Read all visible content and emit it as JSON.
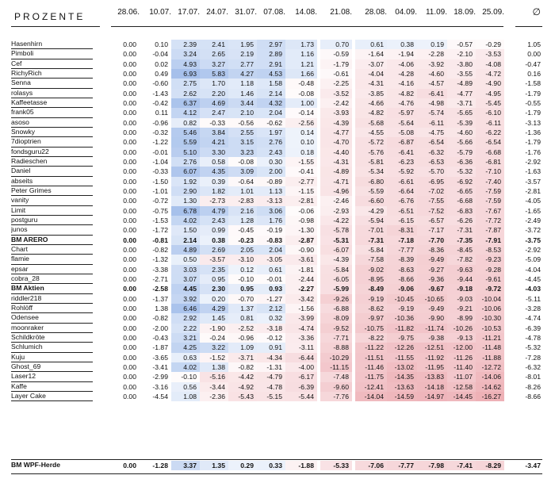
{
  "title": "PROZENTE",
  "avg_header": "∅",
  "dates": [
    "28.06.",
    "10.07.",
    "17.07.",
    "24.07.",
    "31.07.",
    "07.08.",
    "14.08.",
    "21.08.",
    "28.08.",
    "04.09.",
    "11.09.",
    "18.09.",
    "25.09."
  ],
  "rows": [
    {
      "name": "Hasenhirn",
      "values": [
        "0.00",
        "0.10",
        "2.39",
        "2.41",
        "1.95",
        "2.97",
        "1.73",
        "0.70",
        "0.61",
        "0.38",
        "0.19",
        "-0.57",
        "-0.29"
      ],
      "avg": "1.05",
      "bold": false
    },
    {
      "name": "Pimboli",
      "values": [
        "0.00",
        "-0.04",
        "3.24",
        "2.65",
        "2.19",
        "2.89",
        "1.16",
        "-0.59",
        "-1.64",
        "-1.94",
        "-2.28",
        "-2.10",
        "-3.53"
      ],
      "avg": "0.00",
      "bold": false
    },
    {
      "name": "Cef",
      "values": [
        "0.00",
        "0.02",
        "4.93",
        "3.27",
        "2.77",
        "2.91",
        "1.21",
        "-1.79",
        "-3.07",
        "-4.06",
        "-3.92",
        "-3.80",
        "-4.08"
      ],
      "avg": "-0.47",
      "bold": false
    },
    {
      "name": "RichyRich",
      "values": [
        "0.00",
        "0.49",
        "6.93",
        "5.83",
        "4.27",
        "4.53",
        "1.66",
        "-0.61",
        "-4.04",
        "-4.28",
        "-4.60",
        "-3.55",
        "-4.72"
      ],
      "avg": "0.16",
      "bold": false
    },
    {
      "name": "Senna",
      "values": [
        "0.00",
        "-0.60",
        "2.75",
        "1.70",
        "1.18",
        "1.58",
        "-0.48",
        "-2.25",
        "-4.31",
        "-4.16",
        "-4.57",
        "-4.89",
        "-4.90"
      ],
      "avg": "-1.58",
      "bold": false
    },
    {
      "name": "rolasys",
      "values": [
        "0.00",
        "-1.43",
        "2.62",
        "2.20",
        "1.46",
        "2.14",
        "-0.08",
        "-3.52",
        "-3.85",
        "-4.82",
        "-6.41",
        "-4.77",
        "-4.95"
      ],
      "avg": "-1.79",
      "bold": false
    },
    {
      "name": "Kaffeetasse",
      "values": [
        "0.00",
        "-0.42",
        "6.37",
        "4.69",
        "3.44",
        "4.32",
        "1.00",
        "-2.42",
        "-4.66",
        "-4.76",
        "-4.98",
        "-3.71",
        "-5.45"
      ],
      "avg": "-0.55",
      "bold": false
    },
    {
      "name": "frank05",
      "values": [
        "0.00",
        "0.11",
        "4.12",
        "2.47",
        "2.10",
        "2.04",
        "-0.14",
        "-3.93",
        "-4.82",
        "-5.97",
        "-5.74",
        "-5.65",
        "-6.10"
      ],
      "avg": "-1.79",
      "bold": false
    },
    {
      "name": "asoso",
      "values": [
        "0.00",
        "-0.96",
        "0.82",
        "-0.33",
        "-0.56",
        "-0.62",
        "-2.56",
        "-4.39",
        "-5.68",
        "-5.64",
        "-6.11",
        "-5.39",
        "-6.11"
      ],
      "avg": "-3.13",
      "bold": false
    },
    {
      "name": "Snowky",
      "values": [
        "0.00",
        "-0.32",
        "5.46",
        "3.84",
        "2.55",
        "1.97",
        "0.14",
        "-4.77",
        "-4.55",
        "-5.08",
        "-4.75",
        "-4.60",
        "-6.22"
      ],
      "avg": "-1.36",
      "bold": false
    },
    {
      "name": "7dioptrien",
      "values": [
        "0.00",
        "-1.22",
        "5.59",
        "4.21",
        "3.15",
        "2.76",
        "0.10",
        "-4.70",
        "-5.72",
        "-6.87",
        "-6.54",
        "-5.66",
        "-6.54"
      ],
      "avg": "-1.79",
      "bold": false
    },
    {
      "name": "fondsguru22",
      "values": [
        "0.00",
        "-0.01",
        "5.10",
        "3.30",
        "3.23",
        "2.43",
        "0.18",
        "-4.40",
        "-5.76",
        "-6.41",
        "-6.32",
        "-5.79",
        "-6.68"
      ],
      "avg": "-1.76",
      "bold": false
    },
    {
      "name": "Radieschen",
      "values": [
        "0.00",
        "-1.04",
        "2.76",
        "0.58",
        "-0.08",
        "0.30",
        "-1.55",
        "-4.31",
        "-5.81",
        "-6.23",
        "-6.53",
        "-6.36",
        "-6.81"
      ],
      "avg": "-2.92",
      "bold": false
    },
    {
      "name": "Daniel",
      "values": [
        "0.00",
        "-0.33",
        "6.07",
        "4.35",
        "3.09",
        "2.00",
        "-0.41",
        "-4.89",
        "-5.34",
        "-5.92",
        "-5.70",
        "-5.32",
        "-7.10"
      ],
      "avg": "-1.63",
      "bold": false
    },
    {
      "name": "abseits",
      "values": [
        "0.00",
        "-1.50",
        "1.92",
        "0.39",
        "-0.64",
        "-0.89",
        "-2.77",
        "-4.71",
        "-6.80",
        "-6.61",
        "-6.95",
        "-6.92",
        "-7.40"
      ],
      "avg": "-3.57",
      "bold": false
    },
    {
      "name": "Peter Grimes",
      "values": [
        "0.00",
        "-1.01",
        "2.90",
        "1.82",
        "1.01",
        "1.13",
        "-1.15",
        "-4.96",
        "-5.59",
        "-6.64",
        "-7.02",
        "-6.65",
        "-7.59"
      ],
      "avg": "-2.81",
      "bold": false
    },
    {
      "name": "vanity",
      "values": [
        "0.00",
        "-0.72",
        "1.30",
        "-2.73",
        "-2.83",
        "-3.13",
        "-2.81",
        "-2.46",
        "-6.60",
        "-6.76",
        "-7.55",
        "-6.68",
        "-7.59"
      ],
      "avg": "-4.05",
      "bold": false
    },
    {
      "name": "Limit",
      "values": [
        "0.00",
        "-0.75",
        "6.78",
        "4.79",
        "2.16",
        "3.06",
        "-0.06",
        "-2.93",
        "-4.29",
        "-6.51",
        "-7.52",
        "-6.83",
        "-7.67"
      ],
      "avg": "-1.65",
      "bold": false
    },
    {
      "name": "postguru",
      "values": [
        "0.00",
        "-1.53",
        "4.02",
        "2.43",
        "1.28",
        "1.76",
        "-0.98",
        "-4.22",
        "-5.94",
        "-6.15",
        "-6.57",
        "-6.26",
        "-7.72"
      ],
      "avg": "-2.49",
      "bold": false
    },
    {
      "name": "junos",
      "values": [
        "0.00",
        "-1.72",
        "1.50",
        "0.99",
        "-0.45",
        "-0.19",
        "-1.30",
        "-5.78",
        "-7.01",
        "-8.31",
        "-7.17",
        "-7.31",
        "-7.87"
      ],
      "avg": "-3.72",
      "bold": false
    },
    {
      "name": "BM ARERO",
      "values": [
        "0.00",
        "-0.81",
        "2.14",
        "0.38",
        "-0.23",
        "-0.83",
        "-2.87",
        "-5.31",
        "-7.31",
        "-7.18",
        "-7.70",
        "-7.35",
        "-7.91"
      ],
      "avg": "-3.75",
      "bold": true
    },
    {
      "name": "Chart",
      "values": [
        "0.00",
        "-0.82",
        "4.89",
        "2.69",
        "2.05",
        "2.04",
        "-0.90",
        "-6.07",
        "-5.84",
        "-7.77",
        "-8.36",
        "-8.45",
        "-8.53"
      ],
      "avg": "-2.92",
      "bold": false
    },
    {
      "name": "flamie",
      "values": [
        "0.00",
        "-1.32",
        "0.50",
        "-3.57",
        "-3.10",
        "-3.05",
        "-3.61",
        "-4.39",
        "-7.58",
        "-8.39",
        "-9.49",
        "-7.82",
        "-9.23"
      ],
      "avg": "-5.09",
      "bold": false
    },
    {
      "name": "epsar",
      "values": [
        "0.00",
        "-3.38",
        "3.03",
        "2.35",
        "0.12",
        "0.61",
        "-1.81",
        "-5.84",
        "-9.02",
        "-8.63",
        "-9.27",
        "-9.63",
        "-9.28"
      ],
      "avg": "-4.04",
      "bold": false
    },
    {
      "name": "cobra_28",
      "values": [
        "0.00",
        "-2.71",
        "3.07",
        "0.95",
        "-0.10",
        "-0.01",
        "-2.44",
        "-6.05",
        "-8.95",
        "-8.66",
        "-9.36",
        "-9.44",
        "-9.61"
      ],
      "avg": "-4.45",
      "bold": false
    },
    {
      "name": "BM Aktien",
      "values": [
        "0.00",
        "-2.58",
        "4.45",
        "2.30",
        "0.95",
        "0.93",
        "-2.27",
        "-5.99",
        "-8.49",
        "-9.06",
        "-9.67",
        "-9.18",
        "-9.72"
      ],
      "avg": "-4.03",
      "bold": true
    },
    {
      "name": "riddler218",
      "values": [
        "0.00",
        "-1.37",
        "3.92",
        "0.20",
        "-0.70",
        "-1.27",
        "-3.42",
        "-9.26",
        "-9.19",
        "-10.45",
        "-10.65",
        "-9.03",
        "-10.04"
      ],
      "avg": "-5.11",
      "bold": false
    },
    {
      "name": "Rohlöff",
      "values": [
        "0.00",
        "1.38",
        "6.46",
        "4.29",
        "1.37",
        "2.12",
        "-1.56",
        "-6.88",
        "-8.62",
        "-9.19",
        "-9.49",
        "-9.21",
        "-10.06"
      ],
      "avg": "-3.28",
      "bold": false
    },
    {
      "name": "Odensee",
      "values": [
        "0.00",
        "-0.82",
        "2.92",
        "1.45",
        "0.81",
        "0.32",
        "-3.99",
        "-8.09",
        "-9.97",
        "-10.36",
        "-9.90",
        "-8.99",
        "-10.30"
      ],
      "avg": "-4.74",
      "bold": false
    },
    {
      "name": "moonraker",
      "values": [
        "0.00",
        "-2.00",
        "2.22",
        "-1.90",
        "-2.52",
        "-3.18",
        "-4.74",
        "-9.52",
        "-10.75",
        "-11.82",
        "-11.74",
        "-10.26",
        "-10.53"
      ],
      "avg": "-6.39",
      "bold": false
    },
    {
      "name": "Schildkröte",
      "values": [
        "0.00",
        "-0.43",
        "3.21",
        "-0.24",
        "-0.96",
        "-0.12",
        "-3.36",
        "-7.71",
        "-8.22",
        "-9.75",
        "-9.38",
        "-9.13",
        "-11.21"
      ],
      "avg": "-4.78",
      "bold": false
    },
    {
      "name": "Schlumich",
      "values": [
        "0.00",
        "-1.87",
        "4.25",
        "3.22",
        "1.09",
        "0.91",
        "-3.11",
        "-8.88",
        "-11.22",
        "-12.26",
        "-12.51",
        "-12.00",
        "-11.48"
      ],
      "avg": "-5.32",
      "bold": false
    },
    {
      "name": "Kuju",
      "values": [
        "0.00",
        "-3.65",
        "0.63",
        "-1.52",
        "-3.71",
        "-4.34",
        "-6.44",
        "-10.29",
        "-11.51",
        "-11.55",
        "-11.92",
        "-11.26",
        "-11.88"
      ],
      "avg": "-7.28",
      "bold": false
    },
    {
      "name": "Ghost_69",
      "values": [
        "0.00",
        "-3.41",
        "4.02",
        "1.38",
        "-0.82",
        "-1.31",
        "-4.00",
        "-11.15",
        "-11.46",
        "-13.02",
        "-11.95",
        "-11.40",
        "-12.72"
      ],
      "avg": "-6.32",
      "bold": false
    },
    {
      "name": "Laser12",
      "values": [
        "0.00",
        "-2.99",
        "-0.10",
        "-5.16",
        "-4.42",
        "-4.79",
        "-6.17",
        "-7.48",
        "-11.75",
        "-14.35",
        "-13.83",
        "-11.07",
        "-14.06"
      ],
      "avg": "-8.01",
      "bold": false
    },
    {
      "name": "Kaffe",
      "values": [
        "0.00",
        "-3.16",
        "0.56",
        "-3.44",
        "-4.92",
        "-4.78",
        "-6.39",
        "-9.60",
        "-12.41",
        "-13.63",
        "-14.18",
        "-12.58",
        "-14.62"
      ],
      "avg": "-8.26",
      "bold": false
    },
    {
      "name": "Layer Cake",
      "values": [
        "0.00",
        "-4.54",
        "1.08",
        "-2.36",
        "-5.43",
        "-5.15",
        "-5.44",
        "-7.76",
        "-14.04",
        "-14.59",
        "-14.97",
        "-14.45",
        "-16.27"
      ],
      "avg": "-8.66",
      "bold": false
    }
  ],
  "footer": {
    "name": "BM WPF-Herde",
    "values": [
      "0.00",
      "-1.28",
      "3.37",
      "1.35",
      "0.29",
      "0.33",
      "-1.88",
      "-5.33",
      "-7.06",
      "-7.77",
      "-7.98",
      "-7.41",
      "-8.29"
    ],
    "avg": "-3.47"
  }
}
